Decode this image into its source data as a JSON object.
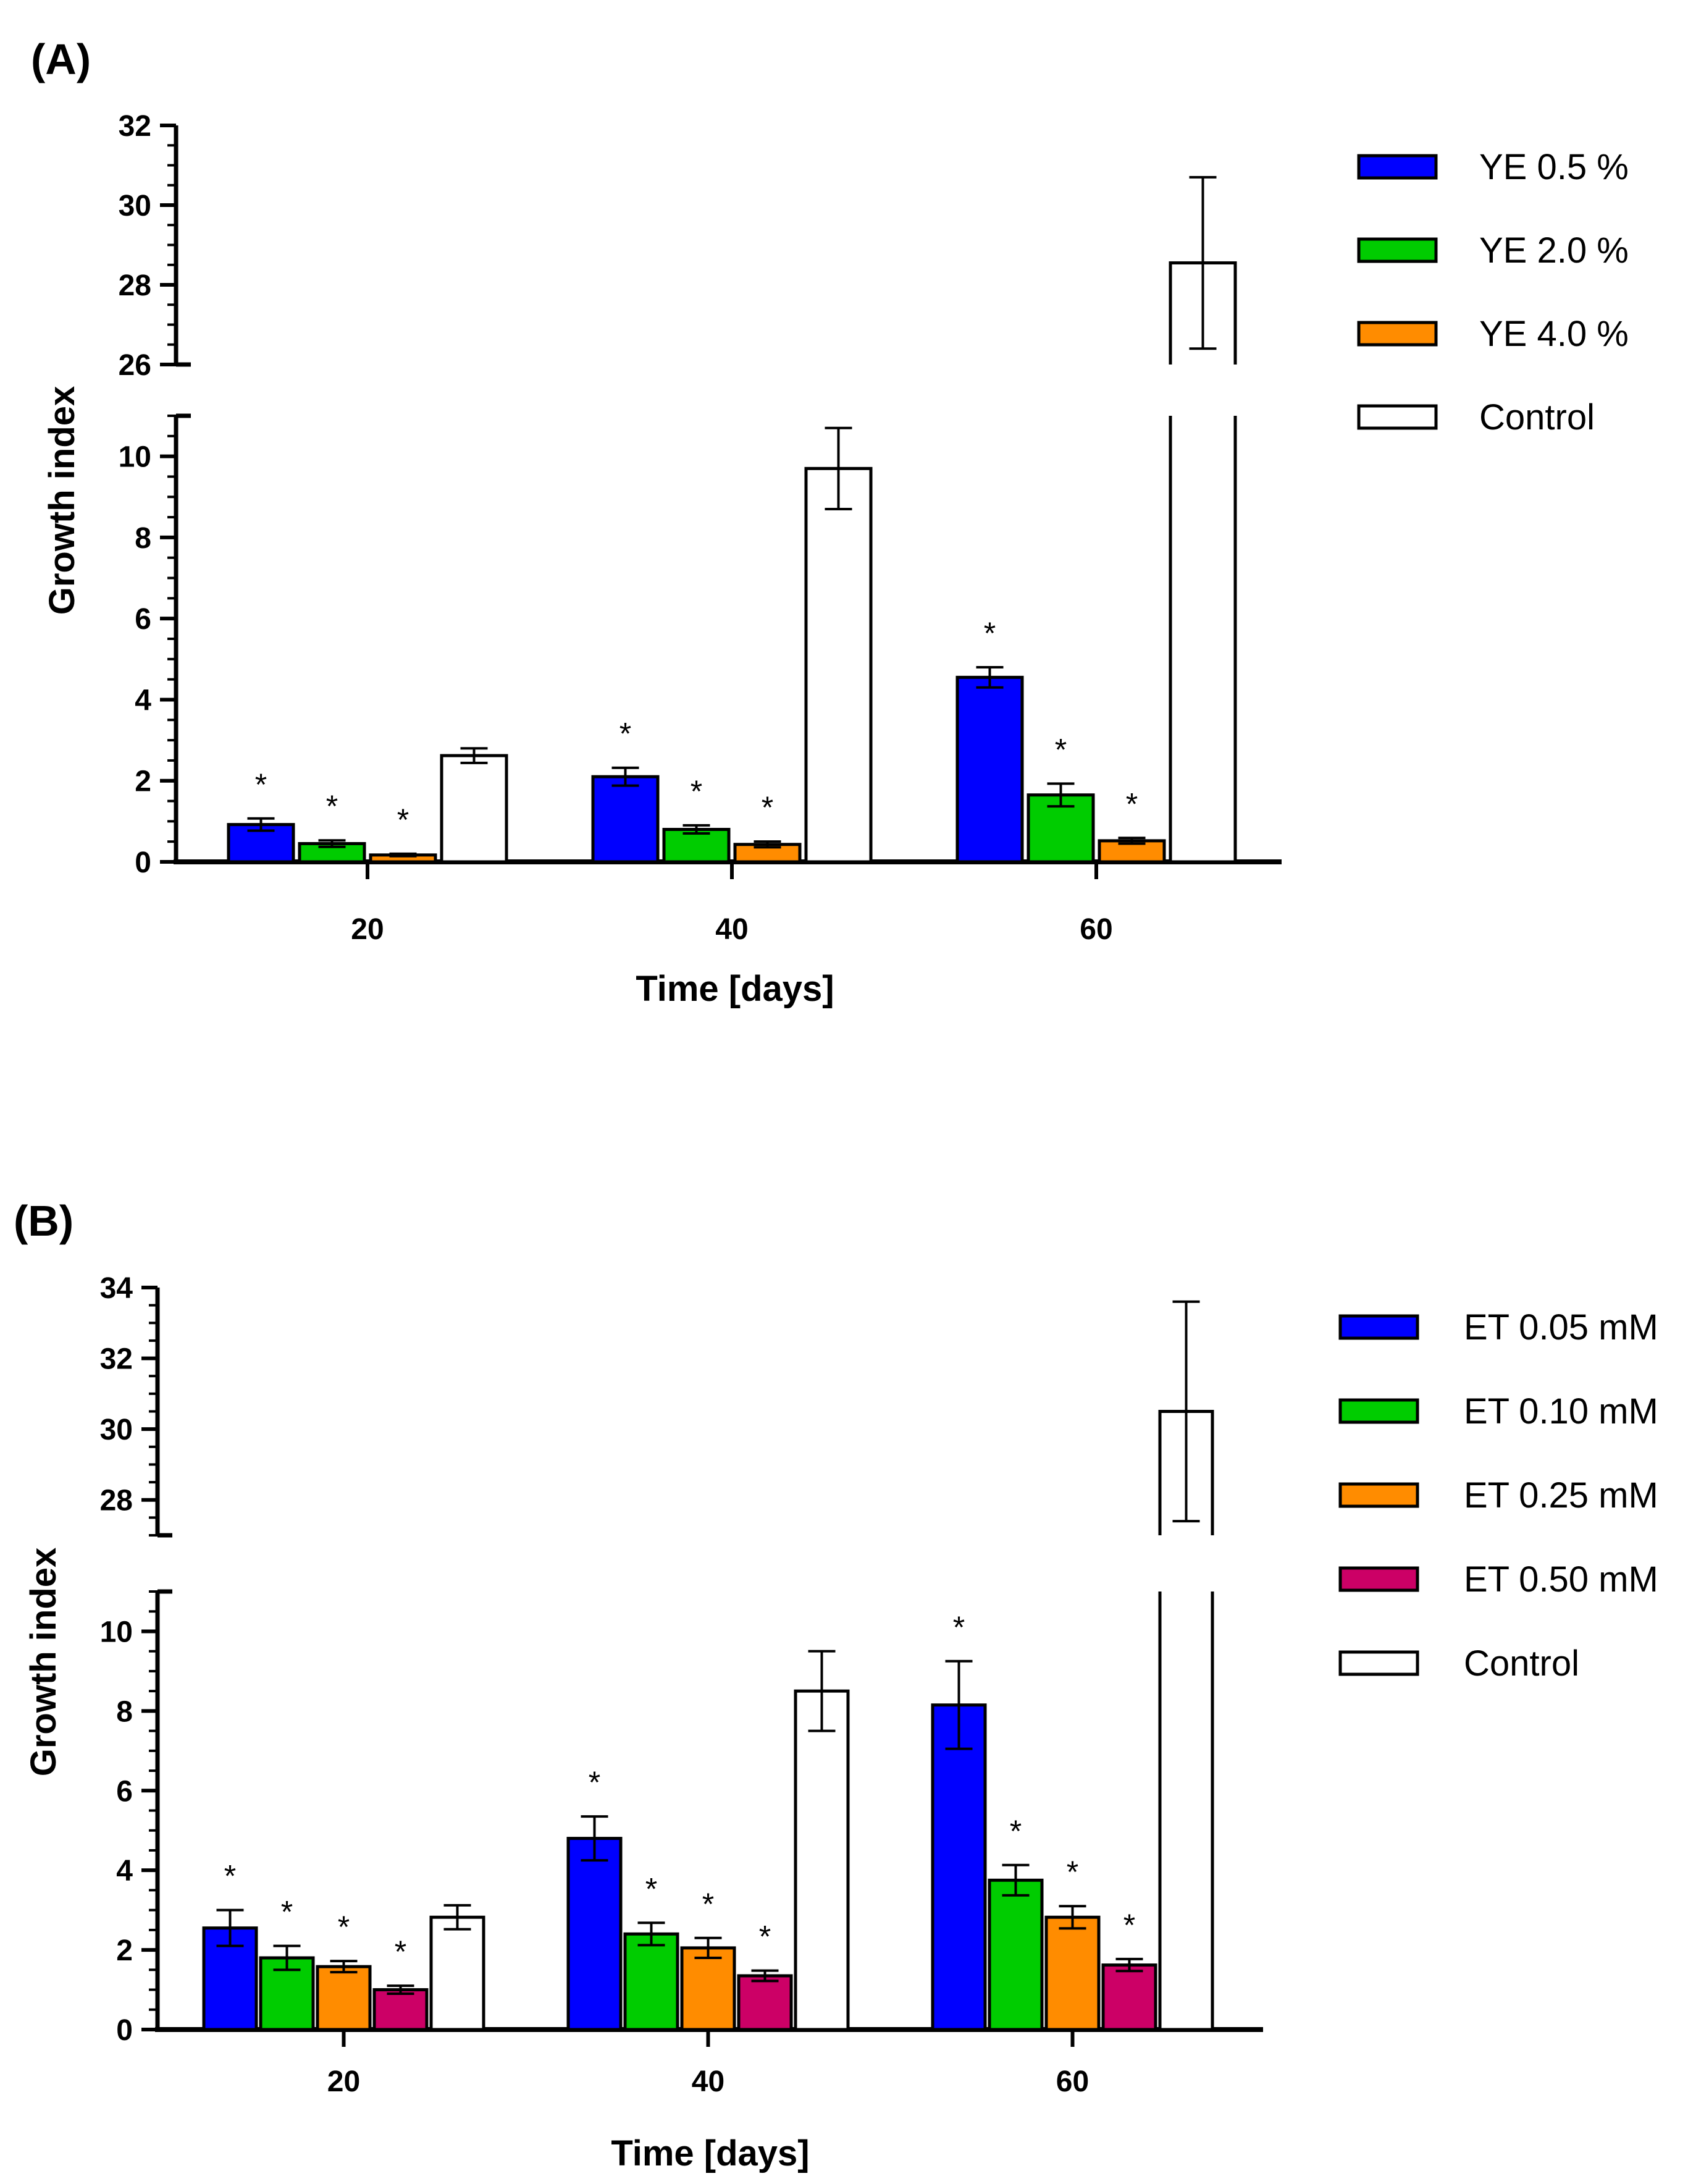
{
  "chart_data": [
    {
      "panel_label": "(A)",
      "type": "bar",
      "xlabel": "Time [days]",
      "ylabel": "Growth index",
      "categories": [
        "20",
        "40",
        "60"
      ],
      "y_axis_break": {
        "lower": [
          0,
          11
        ],
        "upper": [
          26,
          32
        ]
      },
      "y_ticks_lower": [
        "0",
        "2",
        "4",
        "6",
        "8",
        "10"
      ],
      "y_ticks_upper": [
        "26",
        "28",
        "30",
        "32"
      ],
      "series": [
        {
          "name": "YE 0.5 %",
          "color": "#0000ff",
          "values": [
            0.92,
            2.1,
            4.55
          ],
          "errors": [
            0.15,
            0.22,
            0.25
          ],
          "significant": [
            true,
            true,
            true
          ]
        },
        {
          "name": "YE 2.0 %",
          "color": "#00cc00",
          "values": [
            0.45,
            0.8,
            1.65
          ],
          "errors": [
            0.08,
            0.1,
            0.28
          ],
          "significant": [
            true,
            true,
            true
          ]
        },
        {
          "name": "YE 4.0 %",
          "color": "#ff8c00",
          "values": [
            0.17,
            0.43,
            0.52
          ],
          "errors": [
            0.03,
            0.07,
            0.07
          ],
          "significant": [
            true,
            true,
            true
          ]
        },
        {
          "name": "Control",
          "color": "#ffffff",
          "values": [
            2.62,
            9.7,
            28.55
          ],
          "errors": [
            0.18,
            1.0,
            2.15
          ],
          "significant": [
            false,
            false,
            false
          ]
        }
      ],
      "annotation_symbol": "*"
    },
    {
      "panel_label": "(B)",
      "type": "bar",
      "xlabel": "Time [days]",
      "ylabel": "Growth index",
      "categories": [
        "20",
        "40",
        "60"
      ],
      "y_axis_break": {
        "lower": [
          0,
          11
        ],
        "upper": [
          27,
          34
        ]
      },
      "y_ticks_lower": [
        "0",
        "2",
        "4",
        "6",
        "8",
        "10"
      ],
      "y_ticks_upper": [
        "28",
        "30",
        "32",
        "34"
      ],
      "series": [
        {
          "name": "ET 0.05 mM",
          "color": "#0000ff",
          "values": [
            2.55,
            4.8,
            8.15
          ],
          "errors": [
            0.45,
            0.55,
            1.1
          ],
          "significant": [
            true,
            true,
            true
          ]
        },
        {
          "name": "ET 0.10 mM",
          "color": "#00cc00",
          "values": [
            1.8,
            2.4,
            3.75
          ],
          "errors": [
            0.3,
            0.28,
            0.38
          ],
          "significant": [
            true,
            true,
            true
          ]
        },
        {
          "name": "ET 0.25 mM",
          "color": "#ff8c00",
          "values": [
            1.58,
            2.05,
            2.82
          ],
          "errors": [
            0.14,
            0.25,
            0.28
          ],
          "significant": [
            true,
            true,
            true
          ]
        },
        {
          "name": "ET 0.50 mM",
          "color": "#cc0066",
          "values": [
            1.0,
            1.35,
            1.62
          ],
          "errors": [
            0.1,
            0.13,
            0.15
          ],
          "significant": [
            true,
            true,
            true
          ]
        },
        {
          "name": "Control",
          "color": "#ffffff",
          "values": [
            2.82,
            8.5,
            30.5
          ],
          "errors": [
            0.3,
            1.0,
            3.1
          ],
          "significant": [
            false,
            false,
            false
          ]
        }
      ],
      "annotation_symbol": "*"
    }
  ]
}
